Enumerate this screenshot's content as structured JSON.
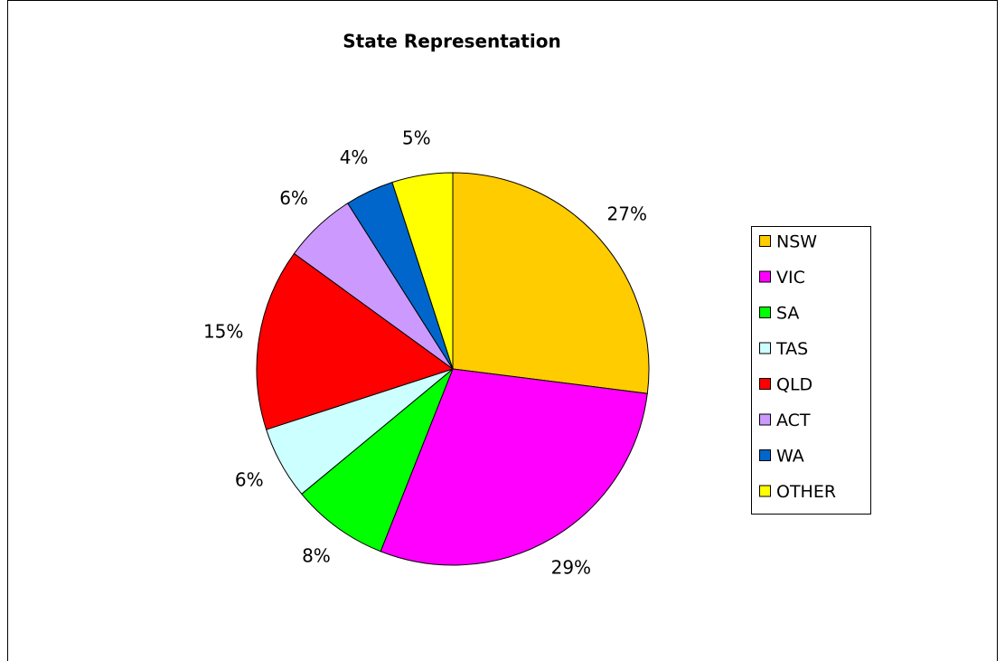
{
  "chart_data": {
    "type": "pie",
    "title": "State Representation",
    "categories": [
      "NSW",
      "VIC",
      "SA",
      "TAS",
      "QLD",
      "ACT",
      "WA",
      "OTHER"
    ],
    "values": [
      27,
      29,
      8,
      6,
      15,
      6,
      4,
      5
    ],
    "value_labels": [
      "27%",
      "29%",
      "8%",
      "6%",
      "15%",
      "6%",
      "4%",
      "5%"
    ],
    "colors": [
      "#ffcc00",
      "#ff00ff",
      "#00ff00",
      "#ccffff",
      "#ff0000",
      "#cc99ff",
      "#0066cc",
      "#ffff00"
    ],
    "legend": "right"
  }
}
